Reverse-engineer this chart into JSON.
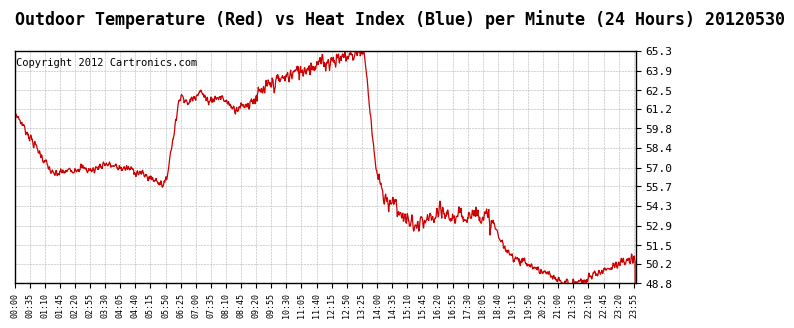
{
  "title": "Outdoor Temperature (Red) vs Heat Index (Blue) per Minute (24 Hours) 20120530",
  "subtitle": "Copyright 2012 Cartronics.com",
  "title_fontsize": 12,
  "subtitle_fontsize": 7.5,
  "background_color": "#ffffff",
  "plot_bg_color": "#ffffff",
  "grid_color": "#aaaaaa",
  "line_color_red": "#cc0000",
  "y_ticks": [
    48.8,
    50.2,
    51.5,
    52.9,
    54.3,
    55.7,
    57.0,
    58.4,
    59.8,
    61.2,
    62.5,
    63.9,
    65.3
  ],
  "ylim": [
    48.8,
    65.3
  ],
  "tick_interval_minutes": 35
}
